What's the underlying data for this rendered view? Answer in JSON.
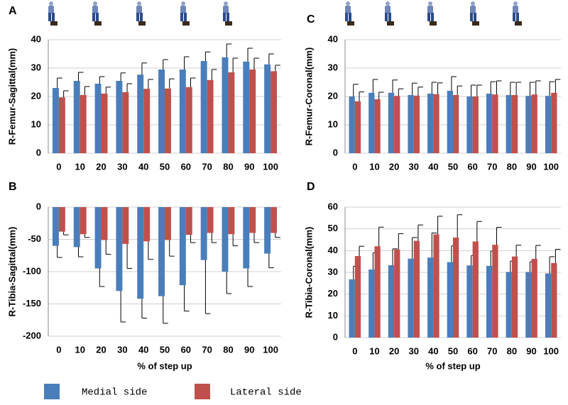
{
  "chart_data": [
    {
      "type": "bar",
      "panel": "A",
      "ylabel": "R-Femur-Sagittal(mm)",
      "categories": [
        "0",
        "10",
        "20",
        "30",
        "40",
        "50",
        "60",
        "70",
        "80",
        "90",
        "100"
      ],
      "series": [
        {
          "color": "#4a7ebb",
          "values": [
            23,
            25.5,
            24.5,
            25.5,
            27.7,
            29.5,
            29.5,
            32.5,
            33.8,
            32.3,
            31.3
          ],
          "errors": [
            3.5,
            3,
            2.5,
            2.8,
            4.1,
            3.5,
            4.5,
            3.2,
            4.7,
            4.7,
            3.7
          ]
        },
        {
          "color": "#c0504d",
          "values": [
            19.7,
            20.5,
            21,
            21.5,
            22.7,
            22.8,
            23.3,
            25.8,
            28.5,
            29.5,
            28.9
          ],
          "errors": [
            2.3,
            3,
            2.3,
            3,
            3.3,
            3.4,
            3.2,
            3.7,
            5,
            4,
            2.1
          ]
        }
      ],
      "ylim": [
        0,
        40
      ],
      "yticks": [
        0,
        10,
        20,
        30,
        40
      ],
      "grid": true
    },
    {
      "type": "bar",
      "panel": "B",
      "ylabel": "R-Tibia-Sagittal(mm)",
      "xlabel": "% of step up",
      "categories": [
        "0",
        "10",
        "20",
        "30",
        "40",
        "50",
        "60",
        "70",
        "80",
        "90",
        "100"
      ],
      "series": [
        {
          "color": "#4a7ebb",
          "values": [
            -60,
            -62,
            -95,
            -130,
            -142,
            -138,
            -121,
            -82,
            -100,
            -95,
            -72
          ],
          "errors": [
            18,
            15,
            28,
            48,
            30,
            42,
            40,
            83,
            34,
            28,
            22
          ]
        },
        {
          "color": "#c0504d",
          "values": [
            -38,
            -42,
            -51,
            -57,
            -53,
            -51,
            -43,
            -40,
            -42,
            -40,
            -40
          ],
          "errors": [
            5,
            5,
            22,
            38,
            28,
            25,
            12,
            15,
            18,
            15,
            7
          ]
        }
      ],
      "ylim": [
        -200,
        0
      ],
      "yticks": [
        -200,
        -150,
        -100,
        -50,
        0
      ],
      "grid": true
    },
    {
      "type": "bar",
      "panel": "C",
      "ylabel": "R-Femur-Coronal(mm)",
      "categories": [
        "0",
        "10",
        "20",
        "30",
        "40",
        "50",
        "60",
        "70",
        "80",
        "90",
        "100"
      ],
      "series": [
        {
          "color": "#4a7ebb",
          "values": [
            20,
            21.3,
            21.3,
            20.5,
            21,
            22,
            20,
            21,
            20.5,
            20.2,
            20.2
          ],
          "errors": [
            4.3,
            4.7,
            4.5,
            4.2,
            4,
            5,
            4,
            4.2,
            4.5,
            4.8,
            5
          ]
        },
        {
          "color": "#c0504d",
          "values": [
            18.3,
            19,
            20.2,
            20.3,
            20.8,
            20.5,
            20,
            20.7,
            20.5,
            20.7,
            21.3
          ],
          "errors": [
            3.3,
            2.5,
            2.5,
            3,
            4,
            3.2,
            4,
            4.8,
            4.5,
            4.8,
            4.7
          ]
        }
      ],
      "ylim": [
        0,
        40
      ],
      "yticks": [
        0,
        10,
        20,
        30,
        40
      ],
      "grid": true
    },
    {
      "type": "bar",
      "panel": "D",
      "ylabel": "R-Tibia-Coronal(mm)",
      "xlabel": "% of step up",
      "categories": [
        "0",
        "10",
        "20",
        "30",
        "40",
        "50",
        "60",
        "70",
        "80",
        "90",
        "100"
      ],
      "series": [
        {
          "color": "#4a7ebb",
          "values": [
            26.8,
            31.3,
            33.3,
            36.3,
            36.8,
            34.7,
            33.2,
            33,
            30.2,
            30.2,
            29.5
          ],
          "errors": [
            6,
            7.7,
            7.5,
            9.7,
            11.3,
            7.5,
            4.5,
            6.8,
            5,
            4.7,
            7.7
          ]
        },
        {
          "color": "#c0504d",
          "values": [
            37.5,
            42,
            40.5,
            44.5,
            47.5,
            46,
            44.2,
            42.7,
            37.3,
            36.2,
            34.3
          ],
          "errors": [
            4.5,
            8.8,
            7.3,
            7.3,
            8.3,
            10.5,
            9.2,
            8,
            5.2,
            6.2,
            6.3
          ]
        }
      ],
      "ylim": [
        0,
        60
      ],
      "yticks": [
        0,
        10,
        20,
        30,
        40,
        50,
        60
      ],
      "grid": true
    }
  ],
  "legend": [
    {
      "name": "Medial side",
      "color": "#4a7ebb"
    },
    {
      "name": "Lateral side",
      "color": "#c0504d"
    }
  ]
}
